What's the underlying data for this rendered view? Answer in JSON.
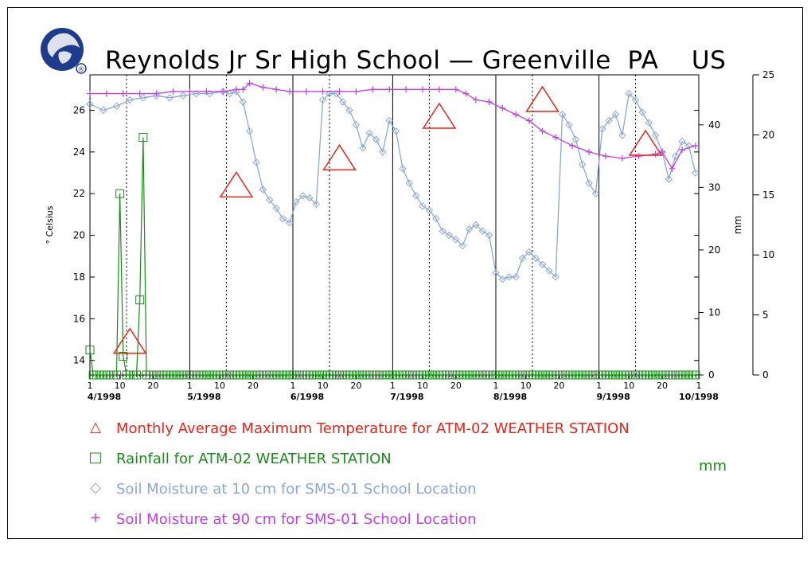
{
  "title": "Reynolds Jr Sr High School — Greenville  PA    US",
  "logo": {
    "icon": "globe-logo-icon",
    "mark": "®"
  },
  "colors": {
    "temperature": "#e8251b",
    "rainfall": "#1a8c1a",
    "soil10": "#8aa8d8",
    "soil90": "#c040e8",
    "axes": "#000000"
  },
  "legend": [
    {
      "symbol": "△",
      "label": "Monthly Average Maximum Temperature for ATM-02 WEATHER STATION",
      "color": "#e8251b"
    },
    {
      "symbol": "□",
      "label": "Rainfall for ATM-02 WEATHER STATION",
      "color": "#1a8c1a"
    },
    {
      "symbol": "◇",
      "label": "Soil Moisture at 10 cm for SMS-01 School Location",
      "color": "#8aa8d8"
    },
    {
      "symbol": "+",
      "label": "Soil Moisture at 90 cm for SMS-01 School Location",
      "color": "#c040e8"
    }
  ],
  "legend_units": "mm",
  "chart_data": {
    "type": "line",
    "title": "Reynolds Jr Sr High School — Greenville  PA    US",
    "x_axis": {
      "range_days": [
        0,
        183
      ],
      "month_starts": [
        0,
        30,
        61,
        91,
        122,
        153,
        183
      ],
      "month_labels": [
        "4/1998",
        "5/1998",
        "6/1998",
        "7/1998",
        "8/1998",
        "9/1998",
        "10/1998"
      ],
      "day_ticks": [
        "1",
        "10",
        "20"
      ],
      "last_label": "1"
    },
    "y_left": {
      "label": "° Celsius",
      "range": [
        13.3,
        27.7
      ],
      "ticks": [
        14,
        16,
        18,
        20,
        22,
        24,
        26
      ]
    },
    "y_mid": {
      "label": "mm",
      "range": [
        0,
        48
      ],
      "ticks": [
        0,
        10,
        20,
        30,
        40
      ]
    },
    "y_right": {
      "range": [
        0,
        25
      ],
      "ticks": [
        0,
        5,
        10,
        15,
        20,
        25
      ]
    },
    "series": [
      {
        "name": "Monthly Average Maximum Temperature for ATM-02 WEATHER STATION",
        "axis": "left",
        "marker": "triangle",
        "x": [
          12,
          44,
          75,
          105,
          136,
          167
        ],
        "y": [
          14.8,
          22.3,
          23.6,
          25.6,
          26.4,
          24.3
        ]
      },
      {
        "name": "Rainfall for ATM-02 WEATHER STATION",
        "axis": "mid",
        "marker": "square",
        "x": [
          0,
          1,
          2,
          3,
          4,
          5,
          6,
          7,
          8,
          9,
          10,
          11,
          12,
          13,
          14,
          15,
          16,
          17,
          18,
          19,
          20,
          21,
          22,
          23,
          24,
          25,
          26,
          27,
          28,
          29,
          30,
          31,
          32,
          33,
          34,
          35,
          36,
          37,
          38,
          39,
          40,
          41,
          42,
          43,
          44,
          45,
          46,
          47,
          48,
          49,
          50,
          51,
          52,
          53,
          54,
          55,
          56,
          57,
          58,
          59,
          60,
          61,
          62,
          63,
          64,
          65,
          66,
          67,
          68,
          69,
          70,
          71,
          72,
          73,
          74,
          75,
          76,
          77,
          78,
          79,
          80,
          81,
          82,
          83,
          84,
          85,
          86,
          87,
          88,
          89,
          90,
          91,
          92,
          93,
          94,
          95,
          96,
          97,
          98,
          99,
          100,
          101,
          102,
          103,
          104,
          105,
          106,
          107,
          108,
          109,
          110,
          111,
          112,
          113,
          114,
          115,
          116,
          117,
          118,
          119,
          120,
          121,
          122,
          123,
          124,
          125,
          126,
          127,
          128,
          129,
          130,
          131,
          132,
          133,
          134,
          135,
          136,
          137,
          138,
          139,
          140,
          141,
          142,
          143,
          144,
          145,
          146,
          147,
          148,
          149,
          150,
          151,
          152,
          153,
          154,
          155,
          156,
          157,
          158,
          159,
          160,
          161,
          162,
          163,
          164,
          165,
          166,
          167,
          168,
          169,
          170,
          171,
          172,
          173,
          174,
          175,
          176,
          177,
          178,
          179,
          180,
          181,
          182
        ],
        "y": [
          4,
          0,
          0,
          0,
          0,
          0,
          0,
          0,
          0,
          29,
          3,
          0,
          0,
          0,
          0,
          12,
          38,
          0,
          0,
          0,
          0,
          0,
          0,
          0,
          0,
          0,
          0,
          0,
          0,
          0,
          0,
          0,
          0,
          0,
          0,
          0,
          0,
          0,
          0,
          0,
          0,
          0,
          0,
          0,
          0,
          0,
          0,
          0,
          0,
          0,
          0,
          0,
          0,
          0,
          0,
          0,
          0,
          0,
          0,
          0,
          0,
          0,
          0,
          0,
          0,
          0,
          0,
          0,
          0,
          0,
          0,
          0,
          0,
          0,
          0,
          0,
          0,
          0,
          0,
          0,
          0,
          0,
          0,
          0,
          0,
          0,
          0,
          0,
          0,
          0,
          0,
          0,
          0,
          0,
          0,
          0,
          0,
          0,
          0,
          0,
          0,
          0,
          0,
          0,
          0,
          0,
          0,
          0,
          0,
          0,
          0,
          0,
          0,
          0,
          0,
          0,
          0,
          0,
          0,
          0,
          0,
          0,
          0,
          0,
          0,
          0,
          0,
          0,
          0,
          0,
          0,
          0,
          0,
          0,
          0,
          0,
          0,
          0,
          0,
          0,
          0,
          0,
          0,
          0,
          0,
          0,
          0,
          0,
          0,
          0,
          0,
          0,
          0,
          0,
          0,
          0,
          0,
          0,
          0,
          0,
          0,
          0,
          0,
          0,
          0,
          0,
          0,
          0,
          0,
          0,
          0,
          0,
          0,
          0,
          0,
          0,
          0,
          0,
          0,
          0,
          0,
          0,
          0
        ]
      },
      {
        "name": "Soil Moisture at 10 cm for SMS-01 School Location",
        "axis": "left",
        "marker": "diamond",
        "x": [
          0,
          4,
          8,
          12,
          16,
          20,
          24,
          28,
          32,
          36,
          40,
          42,
          44,
          46,
          48,
          50,
          52,
          54,
          56,
          58,
          60,
          62,
          64,
          66,
          68,
          70,
          72,
          74,
          76,
          78,
          80,
          82,
          84,
          86,
          88,
          90,
          92,
          94,
          96,
          98,
          100,
          102,
          104,
          106,
          108,
          110,
          112,
          114,
          116,
          118,
          120,
          122,
          124,
          126,
          128,
          130,
          132,
          134,
          136,
          138,
          140,
          142,
          144,
          146,
          148,
          150,
          152,
          154,
          156,
          158,
          160,
          162,
          164,
          166,
          168,
          170,
          172,
          174,
          176,
          178,
          180,
          182
        ],
        "y": [
          26.3,
          26.0,
          26.2,
          26.5,
          26.6,
          26.7,
          26.6,
          26.7,
          26.8,
          26.8,
          26.9,
          26.8,
          26.9,
          26.4,
          25.0,
          23.5,
          22.2,
          21.7,
          21.3,
          20.8,
          20.6,
          21.6,
          21.9,
          21.8,
          21.5,
          26.5,
          26.8,
          26.8,
          26.4,
          26.0,
          25.3,
          24.2,
          24.9,
          24.6,
          24.0,
          25.5,
          25.0,
          23.2,
          22.5,
          21.9,
          21.4,
          21.2,
          20.8,
          20.2,
          20.0,
          19.8,
          19.5,
          20.3,
          20.5,
          20.2,
          20.0,
          18.2,
          17.9,
          18.0,
          18.0,
          18.9,
          19.2,
          18.9,
          18.6,
          18.3,
          18.0,
          25.8,
          25.3,
          24.6,
          23.4,
          22.5,
          22.0,
          25.1,
          25.5,
          25.8,
          24.8,
          26.8,
          26.5,
          25.9,
          25.4,
          24.8,
          24.0,
          22.7,
          23.8,
          24.5,
          24.3,
          23.0
        ]
      },
      {
        "name": "Soil Moisture at 90 cm for SMS-01 School Location",
        "axis": "left",
        "marker": "plus",
        "x": [
          0,
          5,
          10,
          15,
          20,
          25,
          30,
          35,
          40,
          44,
          46,
          48,
          52,
          56,
          60,
          65,
          70,
          75,
          80,
          85,
          90,
          95,
          100,
          105,
          110,
          113,
          116,
          120,
          124,
          128,
          132,
          136,
          140,
          145,
          150,
          155,
          160,
          165,
          170,
          172,
          175,
          178,
          182
        ],
        "y": [
          26.8,
          26.8,
          26.8,
          26.8,
          26.8,
          26.9,
          26.9,
          26.9,
          26.9,
          27.0,
          27.0,
          27.3,
          27.1,
          27.0,
          26.9,
          26.9,
          26.9,
          26.9,
          26.9,
          27.0,
          27.0,
          27.0,
          27.0,
          27.0,
          27.0,
          26.8,
          26.5,
          26.4,
          26.1,
          25.8,
          25.5,
          25.0,
          24.7,
          24.3,
          24.0,
          23.8,
          23.7,
          23.8,
          23.9,
          24.0,
          23.2,
          24.1,
          24.3
        ]
      }
    ],
    "grid": false,
    "legend_position": "bottom"
  }
}
